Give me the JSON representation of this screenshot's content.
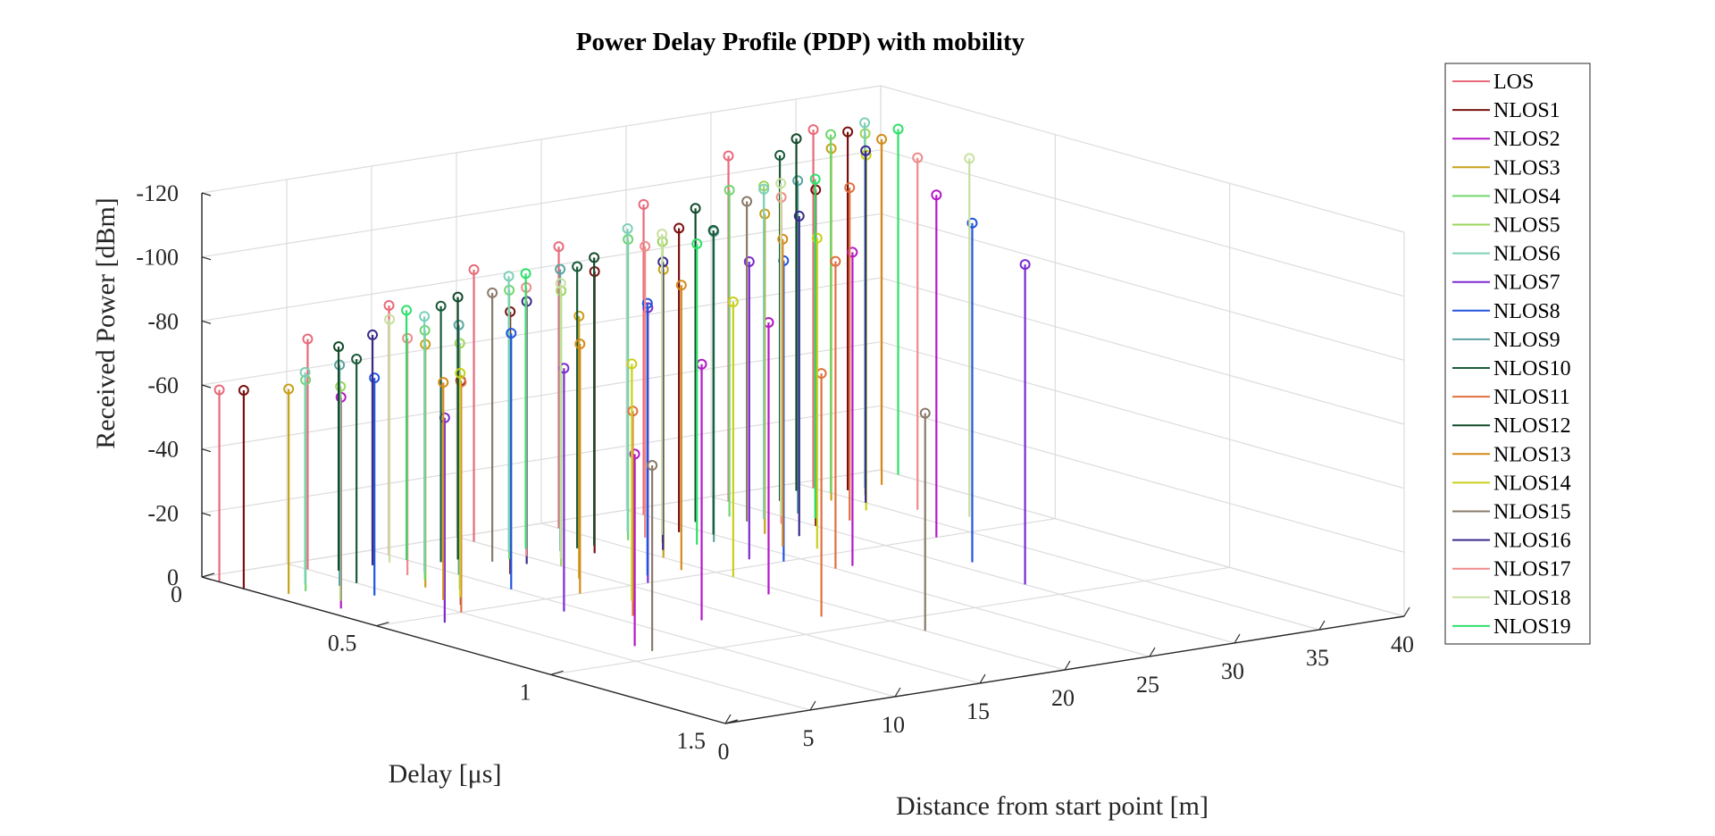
{
  "chart_data": {
    "type": "stem3",
    "title": "Power Delay Profile (PDP) with mobility",
    "xlabel": "Distance from start point [m]",
    "ylabel": "Delay [μs]",
    "zlabel": "Received Power [dBm]",
    "xlim": [
      0,
      40
    ],
    "ylim": [
      0,
      1.5
    ],
    "zlim": [
      0,
      -120
    ],
    "x_ticks": [
      "0",
      "5",
      "10",
      "15",
      "20",
      "25",
      "30",
      "35",
      "40"
    ],
    "y_ticks": [
      "0",
      "0.5",
      "1",
      "1.5"
    ],
    "z_ticks": [
      "0",
      "-20",
      "-40",
      "-60",
      "-80",
      "-100",
      "-120"
    ],
    "grid": true,
    "legend_position": "top-right",
    "series": [
      {
        "name": "LOS",
        "color": "#e86a7a",
        "points": [
          [
            0,
            0.05,
            -60
          ],
          [
            5,
            0.06,
            -72
          ],
          [
            10,
            0.05,
            -78
          ],
          [
            15,
            0.05,
            -85
          ],
          [
            20,
            0.05,
            -88
          ],
          [
            25,
            0.05,
            -97
          ],
          [
            30,
            0.05,
            -108
          ],
          [
            35,
            0.05,
            -112
          ]
        ]
      },
      {
        "name": "NLOS1",
        "color": "#7a1010",
        "points": [
          [
            0,
            0.12,
            -62
          ],
          [
            6,
            0.45,
            -70
          ],
          [
            12,
            0.3,
            -82
          ],
          [
            18,
            0.25,
            -88
          ],
          [
            24,
            0.2,
            -95
          ],
          [
            30,
            0.3,
            -105
          ],
          [
            36,
            0.1,
            -112
          ]
        ]
      },
      {
        "name": "NLOS2",
        "color": "#b518c8",
        "points": [
          [
            1,
            0.35,
            -66
          ],
          [
            7,
            0.9,
            -60
          ],
          [
            13,
            0.8,
            -80
          ],
          [
            19,
            0.7,
            -85
          ],
          [
            26,
            0.6,
            -98
          ],
          [
            33,
            0.5,
            -107
          ]
        ]
      },
      {
        "name": "NLOS3",
        "color": "#c8a018",
        "points": [
          [
            1,
            0.2,
            -64
          ],
          [
            7,
            0.3,
            -76
          ],
          [
            14,
            0.4,
            -82
          ],
          [
            20,
            0.35,
            -90
          ],
          [
            27,
            0.3,
            -100
          ],
          [
            34,
            0.15,
            -110
          ]
        ]
      },
      {
        "name": "NLOS4",
        "color": "#6fd66f",
        "points": [
          [
            2,
            0.2,
            -66
          ],
          [
            8,
            0.25,
            -78
          ],
          [
            14,
            0.2,
            -84
          ],
          [
            21,
            0.2,
            -94
          ],
          [
            28,
            0.15,
            -102
          ],
          [
            35,
            0.1,
            -112
          ]
        ]
      },
      {
        "name": "NLOS5",
        "color": "#9bd45a",
        "points": [
          [
            2,
            0.3,
            -67
          ],
          [
            8,
            0.35,
            -77
          ],
          [
            15,
            0.3,
            -86
          ],
          [
            22,
            0.25,
            -94
          ],
          [
            29,
            0.2,
            -104
          ],
          [
            36,
            0.15,
            -113
          ]
        ]
      },
      {
        "name": "NLOS6",
        "color": "#7dd0b8",
        "points": [
          [
            3,
            0.15,
            -66
          ],
          [
            9,
            0.2,
            -80
          ],
          [
            15,
            0.15,
            -86
          ],
          [
            22,
            0.15,
            -95
          ],
          [
            29,
            0.2,
            -103
          ],
          [
            37,
            0.1,
            -114
          ]
        ]
      },
      {
        "name": "NLOS7",
        "color": "#7a2bd1",
        "points": [
          [
            3,
            0.55,
            -64
          ],
          [
            9,
            0.6,
            -76
          ],
          [
            16,
            0.5,
            -86
          ],
          [
            23,
            0.45,
            -93
          ],
          [
            30,
            0.9,
            -100
          ]
        ]
      },
      {
        "name": "NLOS8",
        "color": "#2255dd",
        "points": [
          [
            4,
            0.3,
            -68
          ],
          [
            10,
            0.4,
            -80
          ],
          [
            17,
            0.45,
            -85
          ],
          [
            24,
            0.5,
            -94
          ],
          [
            31,
            0.7,
            -106
          ]
        ]
      },
      {
        "name": "NLOS9",
        "color": "#5aa3a0",
        "points": [
          [
            4,
            0.2,
            -69
          ],
          [
            10,
            0.25,
            -78
          ],
          [
            17,
            0.2,
            -88
          ],
          [
            24,
            0.3,
            -97
          ],
          [
            31,
            0.2,
            -104
          ]
        ]
      },
      {
        "name": "NLOS10",
        "color": "#1a5a3a",
        "points": [
          [
            5,
            0.2,
            -70
          ],
          [
            11,
            0.15,
            -80
          ],
          [
            18,
            0.2,
            -88
          ],
          [
            25,
            0.25,
            -95
          ],
          [
            32,
            0.1,
            -108
          ]
        ]
      },
      {
        "name": "NLOS11",
        "color": "#e07040",
        "points": [
          [
            5,
            0.5,
            -72
          ],
          [
            11,
            0.7,
            -64
          ],
          [
            18,
            0.9,
            -76
          ],
          [
            25,
            0.6,
            -96
          ],
          [
            32,
            0.3,
            -104
          ]
        ]
      },
      {
        "name": "NLOS12",
        "color": "#124a2a",
        "points": [
          [
            6,
            0.1,
            -70
          ],
          [
            12,
            0.15,
            -82
          ],
          [
            19,
            0.2,
            -90
          ],
          [
            26,
            0.15,
            -98
          ],
          [
            34,
            0.05,
            -110
          ]
        ]
      },
      {
        "name": "NLOS13",
        "color": "#d58a1a",
        "points": [
          [
            6,
            0.4,
            -68
          ],
          [
            12,
            0.5,
            -78
          ],
          [
            19,
            0.45,
            -89
          ],
          [
            26,
            0.4,
            -96
          ],
          [
            38,
            0.1,
            -108
          ]
        ]
      },
      {
        "name": "NLOS14",
        "color": "#c8d01a",
        "points": [
          [
            7,
            0.4,
            -70
          ],
          [
            13,
            0.6,
            -74
          ],
          [
            20,
            0.55,
            -86
          ],
          [
            27,
            0.45,
            -97
          ],
          [
            34,
            0.25,
            -111
          ]
        ]
      },
      {
        "name": "NLOS15",
        "color": "#8a7a6a",
        "points": [
          [
            7,
            0.95,
            -58
          ],
          [
            13,
            0.2,
            -84
          ],
          [
            20,
            1.1,
            -68
          ],
          [
            28,
            0.2,
            -100
          ]
        ]
      },
      {
        "name": "NLOS16",
        "color": "#3a2a8a",
        "points": [
          [
            8,
            0.1,
            -72
          ],
          [
            14,
            0.25,
            -82
          ],
          [
            21,
            0.3,
            -90
          ],
          [
            28,
            0.35,
            -100
          ],
          [
            35,
            0.2,
            -110
          ]
        ]
      },
      {
        "name": "NLOS17",
        "color": "#f08a8a",
        "points": [
          [
            8,
            0.2,
            -74
          ],
          [
            15,
            0.2,
            -84
          ],
          [
            22,
            0.2,
            -91
          ],
          [
            29,
            0.25,
            -102
          ],
          [
            36,
            0.3,
            -110
          ]
        ]
      },
      {
        "name": "NLOS18",
        "color": "#c8e0a0",
        "points": [
          [
            9,
            0.1,
            -76
          ],
          [
            16,
            0.25,
            -86
          ],
          [
            23,
            0.2,
            -94
          ],
          [
            30,
            0.2,
            -104
          ],
          [
            37,
            0.4,
            -112
          ]
        ]
      },
      {
        "name": "NLOS19",
        "color": "#2ee06a",
        "points": [
          [
            10,
            0.1,
            -78
          ],
          [
            16,
            0.15,
            -86
          ],
          [
            23,
            0.3,
            -94
          ],
          [
            31,
            0.25,
            -106
          ],
          [
            40,
            0.05,
            -108
          ]
        ]
      }
    ]
  }
}
